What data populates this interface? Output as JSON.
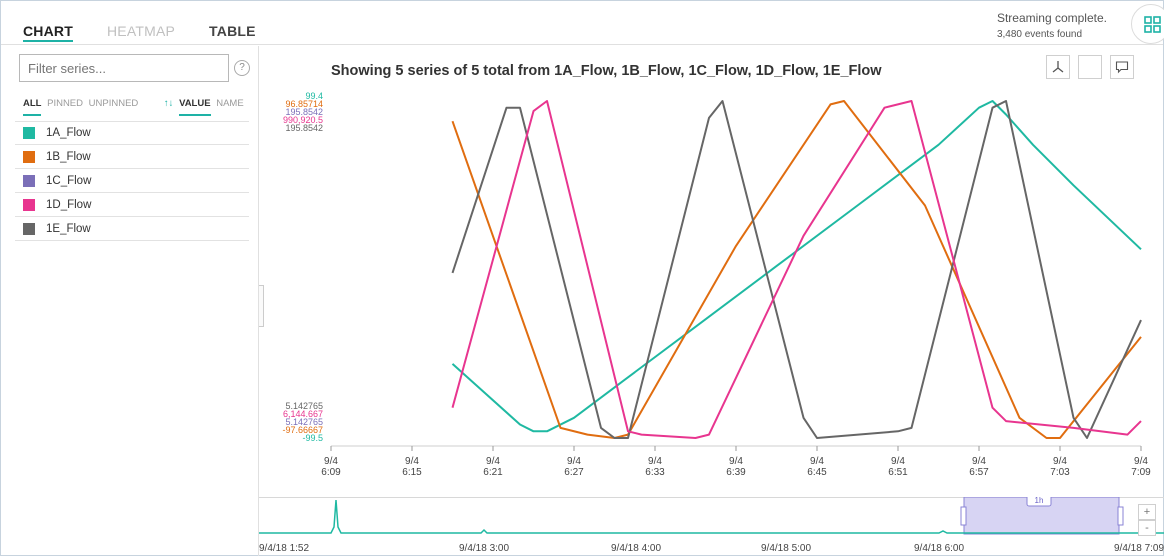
{
  "tabs": [
    {
      "label": "CHART",
      "state": "active"
    },
    {
      "label": "HEATMAP",
      "state": "inactive"
    },
    {
      "label": "TABLE",
      "state": "plain"
    }
  ],
  "status": {
    "message": "Streaming complete.",
    "count": "3,480 events found"
  },
  "filter": {
    "placeholder": "Filter series...",
    "help": "?"
  },
  "sort": {
    "all": "ALL",
    "pinned": "PINNED",
    "unpinned": "UNPINNED",
    "arrow": "↑↓",
    "value": "VALUE",
    "name": "NAME"
  },
  "series": [
    {
      "name": "1A_Flow",
      "color": "#1fb9a2"
    },
    {
      "name": "1B_Flow",
      "color": "#e06d10"
    },
    {
      "name": "1C_Flow",
      "color": "#7b6fb8"
    },
    {
      "name": "1D_Flow",
      "color": "#e8358f"
    },
    {
      "name": "1E_Flow",
      "color": "#666666"
    }
  ],
  "chart_title": "Showing 5 series of 5 total from 1A_Flow, 1B_Flow, 1C_Flow, 1D_Flow, 1E_Flow",
  "chart_data": {
    "type": "line",
    "y_max_labels": [
      {
        "text": "99.4",
        "color": "#1fb9a2"
      },
      {
        "text": "96.85714",
        "color": "#e06d10"
      },
      {
        "text": "195.8542",
        "color": "#7b6fb8"
      },
      {
        "text": "990,920.5",
        "color": "#e8358f"
      },
      {
        "text": "195.8542",
        "color": "#666666"
      }
    ],
    "y_min_labels": [
      {
        "text": "5.142765",
        "color": "#666666"
      },
      {
        "text": "6,144.667",
        "color": "#e8358f"
      },
      {
        "text": "5.142765",
        "color": "#7b6fb8"
      },
      {
        "text": "-97.66667",
        "color": "#e06d10"
      },
      {
        "text": "-99.5",
        "color": "#1fb9a2"
      }
    ],
    "x_ticks": [
      [
        "9/4",
        "6:09"
      ],
      [
        "9/4",
        "6:15"
      ],
      [
        "9/4",
        "6:21"
      ],
      [
        "9/4",
        "6:27"
      ],
      [
        "9/4",
        "6:33"
      ],
      [
        "9/4",
        "6:39"
      ],
      [
        "9/4",
        "6:45"
      ],
      [
        "9/4",
        "6:51"
      ],
      [
        "9/4",
        "6:57"
      ],
      [
        "9/4",
        "7:03"
      ],
      [
        "9/4",
        "7:09"
      ]
    ],
    "x_range_minutes": [
      369,
      429
    ],
    "series": [
      {
        "name": "1A_Flow",
        "color": "#1fb9a2",
        "x": [
          378,
          383,
          384,
          385,
          387,
          390,
          396,
          402,
          408,
          414,
          417,
          418,
          419,
          421,
          424,
          429
        ],
        "y": [
          0.22,
          0.04,
          0.02,
          0.02,
          0.06,
          0.15,
          0.33,
          0.51,
          0.69,
          0.87,
          0.98,
          1.0,
          0.96,
          0.87,
          0.75,
          0.56
        ]
      },
      {
        "name": "1B_Flow",
        "color": "#e06d10",
        "x": [
          378,
          386,
          388,
          390,
          391,
          399,
          406,
          407,
          413,
          420,
          422,
          423,
          429
        ],
        "y": [
          0.94,
          0.03,
          0.01,
          0.0,
          0.01,
          0.57,
          0.99,
          1.0,
          0.69,
          0.06,
          0.0,
          0.0,
          0.3
        ],
        "scale_note": "normalized 0..1 between min/max labels"
      },
      {
        "name": "1E_Flow",
        "color": "#666666",
        "x": [
          378,
          382,
          383,
          389,
          390,
          391,
          397,
          398,
          404,
          405,
          411,
          412,
          418,
          419,
          424,
          425,
          429
        ],
        "y": [
          0.49,
          0.98,
          0.98,
          0.03,
          0.0,
          0.0,
          0.95,
          1.0,
          0.06,
          0.0,
          0.02,
          0.03,
          0.98,
          1.0,
          0.06,
          0.0,
          0.35
        ]
      },
      {
        "name": "1D_Flow",
        "color": "#e8358f",
        "x": [
          378,
          384,
          385,
          391,
          392,
          396,
          397,
          404,
          410,
          412,
          418,
          419,
          424,
          428,
          429
        ],
        "y": [
          0.09,
          0.97,
          1.0,
          0.02,
          0.01,
          0.0,
          0.01,
          0.6,
          0.98,
          1.0,
          0.09,
          0.05,
          0.03,
          0.01,
          0.05
        ]
      }
    ],
    "grid": false
  },
  "brush": {
    "labels": [
      "9/4/18 1:52",
      "9/4/18 3:00",
      "9/4/18 4:00",
      "9/4/18 5:00",
      "9/4/18 6:00",
      "9/4/18 7:09"
    ],
    "window_label": "1h",
    "zoom_in": "+",
    "zoom_out": "-"
  }
}
